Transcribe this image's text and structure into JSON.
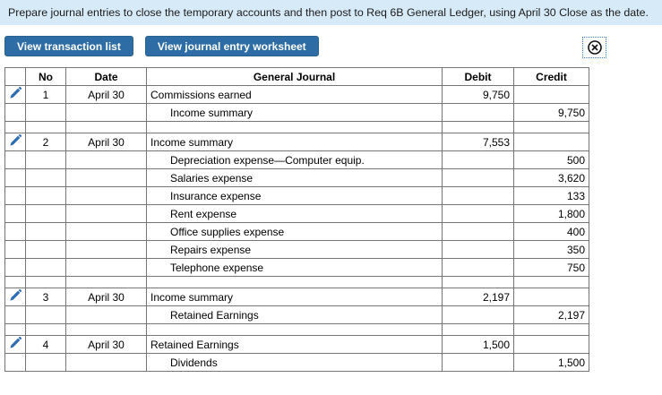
{
  "banner": {
    "text": "Prepare journal entries to close the temporary accounts and then post to Req 6B General Ledger, using April 30 Close as the date."
  },
  "toolbar": {
    "view_transaction_list_label": "View transaction list",
    "view_journal_entry_worksheet_label": "View journal entry worksheet"
  },
  "icons": {
    "edit": "pencil-icon",
    "close": "circle-x-icon"
  },
  "colors": {
    "banner_bg": "#d7eaf7",
    "button_bg": "#2d6ca4",
    "header_bg": "#72a5d9",
    "pencil_blue": "#2e6db4",
    "border_gray": "#757575"
  },
  "table": {
    "columns": [
      "No",
      "Date",
      "General Journal",
      "Debit",
      "Credit"
    ],
    "entries": [
      {
        "no": "1",
        "date": "April 30",
        "lines": [
          {
            "account": "Commissions earned",
            "indent": false,
            "debit": "9,750",
            "credit": ""
          },
          {
            "account": "Income summary",
            "indent": true,
            "debit": "",
            "credit": "9,750"
          }
        ]
      },
      {
        "no": "2",
        "date": "April 30",
        "lines": [
          {
            "account": "Income summary",
            "indent": false,
            "debit": "7,553",
            "credit": ""
          },
          {
            "account": "Depreciation expense—Computer equip.",
            "indent": true,
            "debit": "",
            "credit": "500"
          },
          {
            "account": "Salaries expense",
            "indent": true,
            "debit": "",
            "credit": "3,620"
          },
          {
            "account": "Insurance expense",
            "indent": true,
            "debit": "",
            "credit": "133"
          },
          {
            "account": "Rent expense",
            "indent": true,
            "debit": "",
            "credit": "1,800"
          },
          {
            "account": "Office supplies expense",
            "indent": true,
            "debit": "",
            "credit": "400"
          },
          {
            "account": "Repairs expense",
            "indent": true,
            "debit": "",
            "credit": "350"
          },
          {
            "account": "Telephone expense",
            "indent": true,
            "debit": "",
            "credit": "750"
          }
        ]
      },
      {
        "no": "3",
        "date": "April 30",
        "lines": [
          {
            "account": "Income summary",
            "indent": false,
            "debit": "2,197",
            "credit": ""
          },
          {
            "account": "Retained Earnings",
            "indent": true,
            "debit": "",
            "credit": "2,197"
          }
        ]
      },
      {
        "no": "4",
        "date": "April 30",
        "lines": [
          {
            "account": "Retained Earnings",
            "indent": false,
            "debit": "1,500",
            "credit": ""
          },
          {
            "account": "Dividends",
            "indent": true,
            "debit": "",
            "credit": "1,500"
          }
        ]
      }
    ]
  }
}
